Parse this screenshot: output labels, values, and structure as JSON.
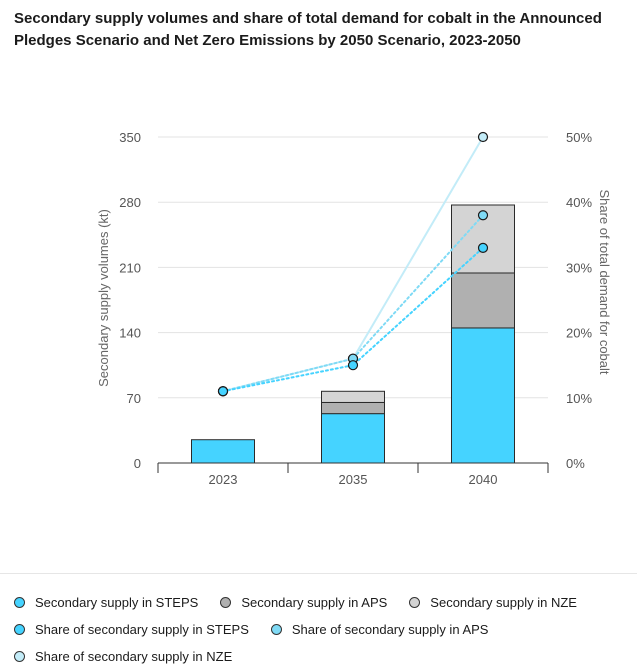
{
  "title": "Secondary supply volumes and share of total demand for cobalt in the Announced Pledges Scenario and Net Zero Emissions by 2050 Scenario, 2023-2050",
  "chart_data": {
    "type": "bar",
    "categories": [
      "2023",
      "2035",
      "2040"
    ],
    "ylabel": "Secondary supply volumes (kt)",
    "y2label": "Share of total demand for cobalt",
    "ylim": [
      0,
      350
    ],
    "yticks": [
      0,
      70,
      140,
      210,
      280,
      350
    ],
    "ytick_labels": [
      "0",
      "70",
      "140",
      "210",
      "280",
      "350"
    ],
    "y2lim": [
      0,
      0.5
    ],
    "y2ticks": [
      0,
      0.1,
      0.2,
      0.3,
      0.4,
      0.5
    ],
    "y2tick_labels": [
      "0%",
      "10%",
      "20%",
      "30%",
      "40%",
      "50%"
    ],
    "grid": true,
    "legend_position": "bottom",
    "stacked_series": [
      {
        "name": "Secondary supply in STEPS",
        "color": "#45d3ff",
        "values": [
          25,
          53,
          145
        ]
      },
      {
        "name": "Secondary supply in APS",
        "color": "#b0b0b0",
        "values": [
          0,
          12,
          59
        ]
      },
      {
        "name": "Secondary supply in NZE",
        "color": "#d4d4d4",
        "values": [
          0,
          12,
          73
        ]
      }
    ],
    "line_series": [
      {
        "name": "Share of secondary supply in STEPS",
        "color": "#45d3ff",
        "style": "dotted",
        "values": [
          0.11,
          0.15,
          0.33
        ]
      },
      {
        "name": "Share of secondary supply in APS",
        "color": "#7fdaf5",
        "style": "dotted",
        "values": [
          0.11,
          0.16,
          0.38
        ]
      },
      {
        "name": "Share of secondary supply in NZE",
        "color": "#c3ecf8",
        "style": "solid",
        "values": [
          0.11,
          0.16,
          0.5
        ]
      }
    ]
  }
}
